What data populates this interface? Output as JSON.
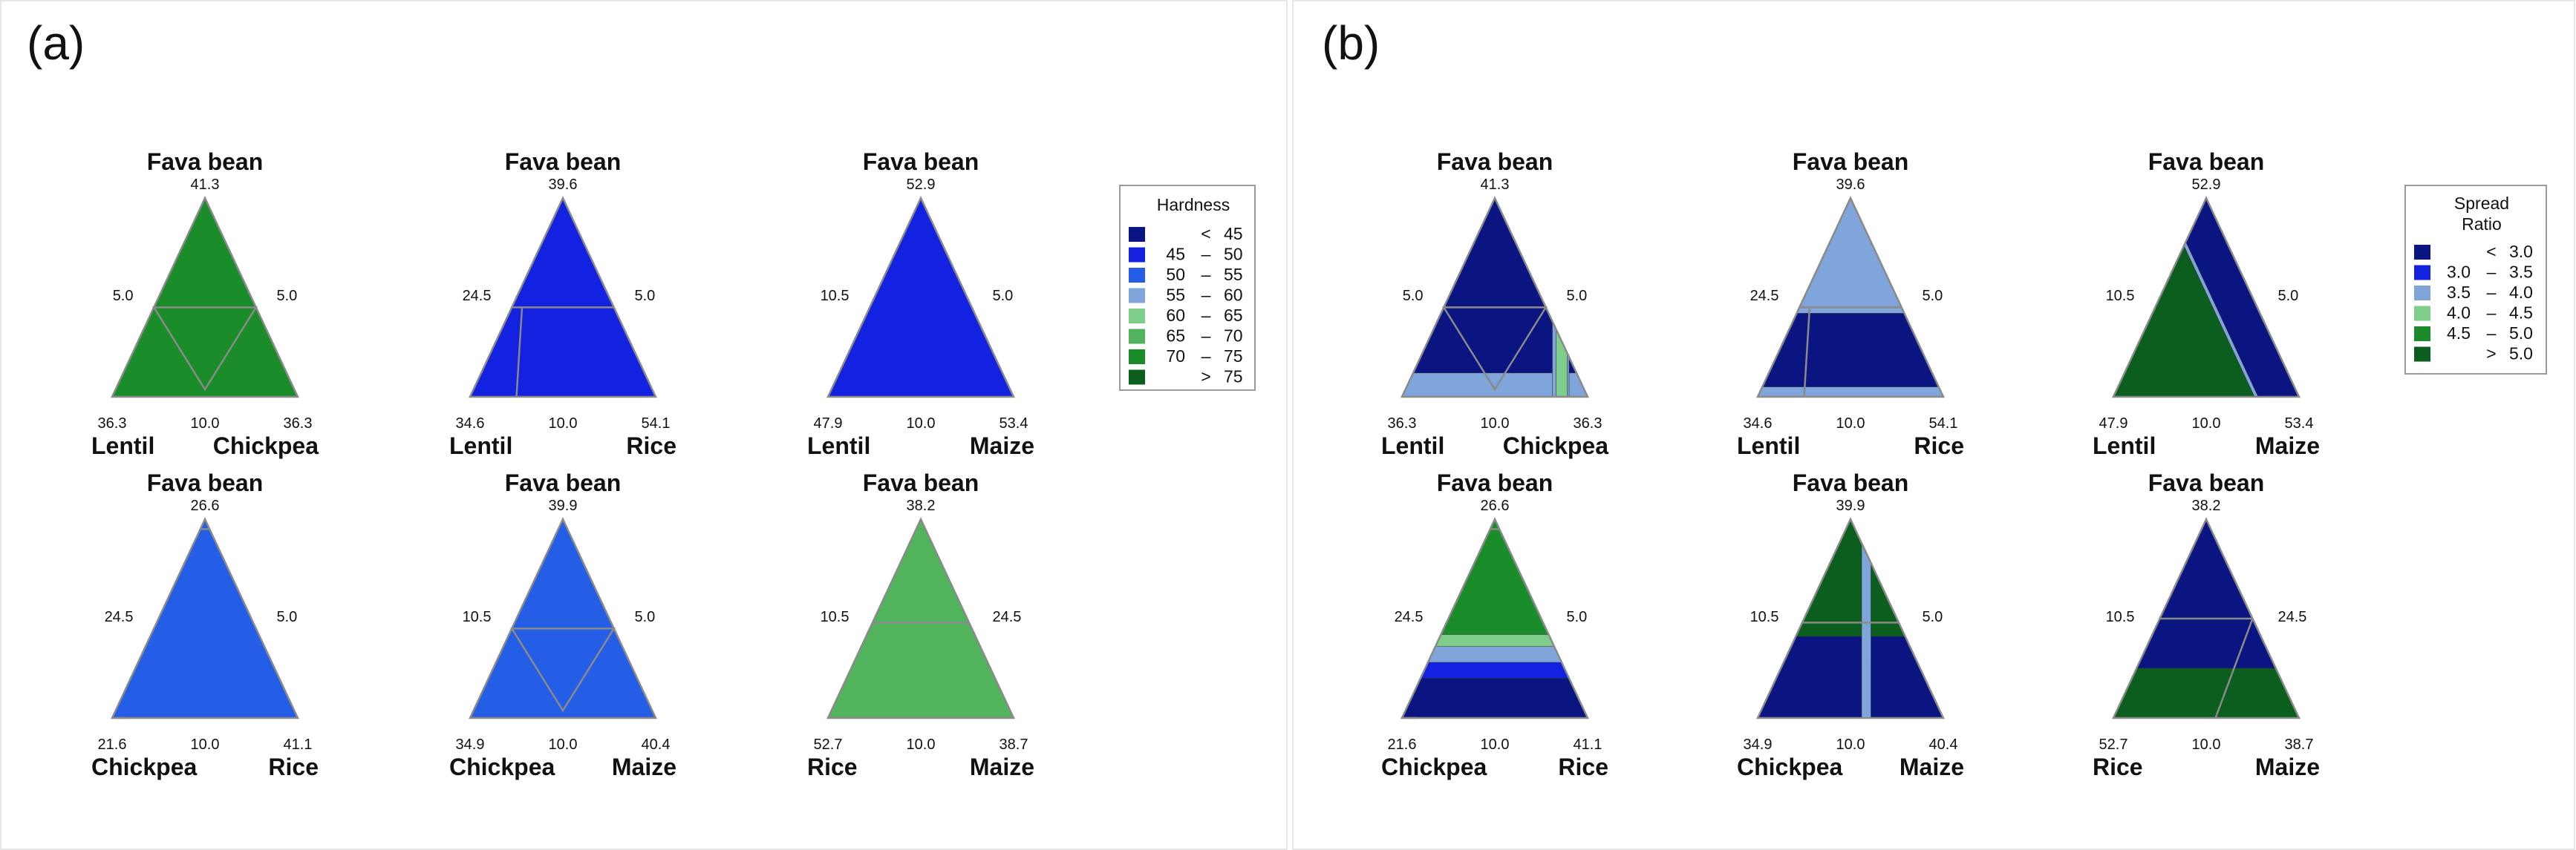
{
  "panel_labels": {
    "a": "(a)",
    "b": "(b)"
  },
  "colors": {
    "c1": "#0b1582",
    "c2": "#1322e0",
    "c3": "#245ee6",
    "c4": "#7fa5db",
    "c5": "#7ecd88",
    "c6": "#51b35c",
    "c7": "#1b8c2a",
    "c8": "#0b5e1e",
    "s1": "#0b1582",
    "s2": "#1322e0",
    "s3": "#7fa5db",
    "s4": "#7ecd88",
    "s5": "#1b8c2a",
    "s6": "#0b5e1e"
  },
  "chart_data": [
    {
      "type": "ternary-contour",
      "panel": "(a)",
      "response": "Hardness",
      "legend": {
        "title": "Hardness",
        "entries": [
          {
            "lo": "",
            "sep": "<",
            "hi": "45",
            "color_key": "c1"
          },
          {
            "lo": "45",
            "sep": "–",
            "hi": "50",
            "color_key": "c2"
          },
          {
            "lo": "50",
            "sep": "–",
            "hi": "55",
            "color_key": "c3"
          },
          {
            "lo": "55",
            "sep": "–",
            "hi": "60",
            "color_key": "c4"
          },
          {
            "lo": "60",
            "sep": "–",
            "hi": "65",
            "color_key": "c5"
          },
          {
            "lo": "65",
            "sep": "–",
            "hi": "70",
            "color_key": "c6"
          },
          {
            "lo": "70",
            "sep": "–",
            "hi": "75",
            "color_key": "c7"
          },
          {
            "lo": "",
            "sep": ">",
            "hi": "75",
            "color_key": "c8"
          }
        ]
      },
      "subplots": [
        {
          "top": "Fava bean",
          "top_val": "41.3",
          "left_side": "5.0",
          "right_side": "5.0",
          "bl_val": "36.3",
          "bottom_val": "10.0",
          "br_val": "36.3",
          "bl_name": "Lentil",
          "br_name": "Chickpea",
          "inner": "down-triangle",
          "regions": [
            {
              "color": "c4",
              "coef": [
                1,
                0,
                0
              ],
              "to": 0.16
            },
            {
              "color": "c5",
              "coef": [
                1,
                0,
                0
              ],
              "to": 0.67
            },
            {
              "color": "c6",
              "coef": [
                1,
                0,
                0
              ],
              "to": 0.96
            },
            {
              "color": "c7",
              "coef": [
                1,
                0,
                0
              ],
              "to": 1.0
            }
          ]
        },
        {
          "top": "Fava bean",
          "top_val": "39.6",
          "left_side": "24.5",
          "right_side": "5.0",
          "bl_val": "34.6",
          "bottom_val": "10.0",
          "br_val": "54.1",
          "bl_name": "Lentil",
          "br_name": "Rice",
          "inner": "right-corner",
          "regions": [
            {
              "color": "c5",
              "coef": [
                0.5,
                -0.5,
                0
              ],
              "to": 0.05
            },
            {
              "color": "c4",
              "coef": [
                0.5,
                -0.5,
                0
              ],
              "to": 0.42
            },
            {
              "color": "c3",
              "coef": [
                0.5,
                -0.5,
                0
              ],
              "to": 0.62
            },
            {
              "color": "c2",
              "coef": [
                0.5,
                -0.5,
                0
              ],
              "to": 1.0
            }
          ]
        },
        {
          "top": "Fava bean",
          "top_val": "52.9",
          "left_side": "10.5",
          "right_side": "5.0",
          "bl_val": "47.9",
          "bottom_val": "10.0",
          "br_val": "53.4",
          "bl_name": "Lentil",
          "br_name": "Maize",
          "inner": "none",
          "regions": [
            {
              "color": "c7",
              "coef": [
                0.5,
                -0.5,
                0
              ],
              "to": -0.4
            },
            {
              "color": "c6",
              "coef": [
                0.5,
                -0.5,
                0
              ],
              "to": -0.12
            },
            {
              "color": "c5",
              "coef": [
                0.5,
                -0.5,
                0
              ],
              "to": 0.1
            },
            {
              "color": "c4",
              "coef": [
                0.5,
                -0.5,
                0
              ],
              "to": 0.28
            },
            {
              "color": "c3",
              "coef": [
                0.5,
                -0.5,
                0
              ],
              "to": 0.5
            },
            {
              "color": "c2",
              "coef": [
                0.5,
                -0.5,
                0
              ],
              "to": 1.0
            }
          ]
        },
        {
          "top": "Fava bean",
          "top_val": "26.6",
          "left_side": "24.5",
          "right_side": "5.0",
          "bl_val": "21.6",
          "bottom_val": "10.0",
          "br_val": "41.1",
          "bl_name": "Chickpea",
          "br_name": "Rice",
          "inner": "left-corner",
          "regions": [
            {
              "color": "c5",
              "coef": [
                1,
                0,
                0
              ],
              "to": 0.25
            },
            {
              "color": "c4",
              "coef": [
                1,
                0,
                0
              ],
              "to": 0.68
            },
            {
              "color": "c3",
              "coef": [
                1,
                0,
                0
              ],
              "to": 1.0
            }
          ]
        },
        {
          "top": "Fava bean",
          "top_val": "39.9",
          "left_side": "10.5",
          "right_side": "5.0",
          "bl_val": "34.9",
          "bottom_val": "10.0",
          "br_val": "40.4",
          "bl_name": "Chickpea",
          "br_name": "Maize",
          "inner": "down-triangle",
          "regions": [
            {
              "color": "c8",
              "coef": [
                1,
                0.4,
                0
              ],
              "to": 0.04
            },
            {
              "color": "c7",
              "coef": [
                1,
                0.4,
                0
              ],
              "to": 0.22
            },
            {
              "color": "c6",
              "coef": [
                1,
                0.4,
                0
              ],
              "to": 0.42
            },
            {
              "color": "c5",
              "coef": [
                1,
                0.4,
                0
              ],
              "to": 0.66
            },
            {
              "color": "c4",
              "coef": [
                1,
                0.4,
                0
              ],
              "to": 0.84
            },
            {
              "color": "c3",
              "coef": [
                1,
                0.4,
                0
              ],
              "to": 1.5
            }
          ]
        },
        {
          "top": "Fava bean",
          "top_val": "38.2",
          "left_side": "10.5",
          "right_side": "24.5",
          "bl_val": "52.7",
          "bottom_val": "10.0",
          "br_val": "38.7",
          "bl_name": "Rice",
          "br_name": "Maize",
          "inner": "mid-line",
          "regions": [
            {
              "color": "c3",
              "coef": [
                0,
                -1,
                0.15
              ],
              "to": -0.85
            },
            {
              "color": "c4",
              "coef": [
                0,
                -1,
                0.15
              ],
              "to": -0.55
            },
            {
              "color": "c5",
              "coef": [
                0,
                -1,
                0.15
              ],
              "to": -0.4
            },
            {
              "color": "c6",
              "coef": [
                0,
                -1,
                0.15
              ],
              "to": -0.05
            }
          ]
        }
      ]
    },
    {
      "type": "ternary-contour",
      "panel": "(b)",
      "response": "Spread Ratio",
      "legend": {
        "title_lines": [
          "Spread",
          "Ratio"
        ],
        "entries": [
          {
            "lo": "",
            "sep": "<",
            "hi": "3.0",
            "color_key": "s1"
          },
          {
            "lo": "3.0",
            "sep": "–",
            "hi": "3.5",
            "color_key": "s2"
          },
          {
            "lo": "3.5",
            "sep": "–",
            "hi": "4.0",
            "color_key": "s3"
          },
          {
            "lo": "4.0",
            "sep": "–",
            "hi": "4.5",
            "color_key": "s4"
          },
          {
            "lo": "4.5",
            "sep": "–",
            "hi": "5.0",
            "color_key": "s5"
          },
          {
            "lo": "",
            "sep": ">",
            "hi": "5.0",
            "color_key": "s6"
          }
        ]
      },
      "subplots": [
        {
          "top": "Fava bean",
          "top_val": "41.3",
          "left_side": "5.0",
          "right_side": "5.0",
          "bl_val": "36.3",
          "bottom_val": "10.0",
          "br_val": "36.3",
          "bl_name": "Lentil",
          "br_name": "Chickpea",
          "inner": "down-triangle",
          "base": "s1",
          "regions": [
            {
              "color": "s3",
              "coef": [
                0,
                0,
                -1
              ],
              "to": -0.38
            },
            {
              "color": "s6",
              "coef": [
                0,
                0,
                -1
              ],
              "to": -0.52
            },
            {
              "color": "s3",
              "coef": [
                1,
                0,
                0
              ],
              "from": 0.62,
              "to": 0.8
            },
            {
              "color": "s4",
              "coef": [
                1,
                0,
                0
              ],
              "from": 0.66,
              "to": 0.78
            }
          ]
        },
        {
          "top": "Fava bean",
          "top_val": "39.6",
          "left_side": "24.5",
          "right_side": "5.0",
          "bl_val": "34.6",
          "bottom_val": "10.0",
          "br_val": "54.1",
          "bl_name": "Lentil",
          "br_name": "Rice",
          "inner": "right-corner",
          "base": "s1",
          "regions": [
            {
              "color": "s3",
              "coef": [
                0,
                0,
                -1
              ],
              "to": -0.45
            },
            {
              "color": "s6",
              "coef": [
                0,
                0,
                -1
              ],
              "to": -0.55
            },
            {
              "color": "s3",
              "coef": [
                0,
                0,
                1
              ],
              "to": 0.08
            }
          ]
        },
        {
          "top": "Fava bean",
          "top_val": "52.9",
          "left_side": "10.5",
          "right_side": "5.0",
          "bl_val": "47.9",
          "bottom_val": "10.0",
          "br_val": "53.4",
          "bl_name": "Lentil",
          "br_name": "Maize",
          "inner": "none",
          "base": "s6",
          "regions": [
            {
              "color": "s3",
              "coef": [
                -0.5,
                0.5,
                0
              ],
              "to": 0.24
            },
            {
              "color": "s1",
              "coef": [
                -0.5,
                0.5,
                0
              ],
              "to": 0.22
            }
          ]
        },
        {
          "top": "Fava bean",
          "top_val": "26.6",
          "left_side": "24.5",
          "right_side": "5.0",
          "bl_val": "21.6",
          "bottom_val": "10.0",
          "br_val": "41.1",
          "bl_name": "Chickpea",
          "br_name": "Rice",
          "inner": "left-corner",
          "base": "s1",
          "regions": [
            {
              "color": "s2",
              "coef": [
                0,
                0,
                1
              ],
              "to": 0.3
            },
            {
              "color": "s3",
              "coef": [
                0,
                0,
                1
              ],
              "to": 0.22
            },
            {
              "color": "s4",
              "coef": [
                0,
                0,
                1
              ],
              "to": 0.14
            },
            {
              "color": "s5",
              "coef": [
                0,
                0,
                1
              ],
              "to": 0.08
            }
          ]
        },
        {
          "top": "Fava bean",
          "top_val": "39.9",
          "left_side": "10.5",
          "right_side": "5.0",
          "bl_val": "34.9",
          "bottom_val": "10.0",
          "br_val": "40.4",
          "bl_name": "Chickpea",
          "br_name": "Maize",
          "inner": "mid-line",
          "base": "s1",
          "regions": [
            {
              "color": "s6",
              "coef": [
                0,
                0,
                -1
              ],
              "to": -0.72
            },
            {
              "color": "s6",
              "coef": [
                0,
                0,
                1
              ],
              "to": 0.09
            },
            {
              "color": "s3",
              "coef": [
                1,
                0,
                0
              ],
              "from": 0.12,
              "to": 0.22
            }
          ]
        },
        {
          "top": "Fava bean",
          "top_val": "38.2",
          "left_side": "10.5",
          "right_side": "24.5",
          "bl_val": "52.7",
          "bottom_val": "10.0",
          "br_val": "38.7",
          "bl_name": "Rice",
          "br_name": "Maize",
          "inner": "right-line",
          "base": "s1",
          "regions": [
            {
              "color": "s3",
              "coef": [
                0,
                0,
                -1
              ],
              "to": -0.48
            },
            {
              "color": "s4",
              "coef": [
                0,
                0,
                -1
              ],
              "to": -0.56
            },
            {
              "color": "s6",
              "coef": [
                0,
                0,
                -1
              ],
              "to": -0.66
            },
            {
              "color": "s6",
              "coef": [
                0,
                1,
                -0.2
              ],
              "from": 0.7,
              "to": 2
            }
          ]
        }
      ]
    }
  ]
}
